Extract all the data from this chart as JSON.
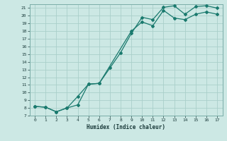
{
  "xlabel": "Humidex (Indice chaleur)",
  "bg_color": "#cce8e4",
  "grid_color": "#aacfca",
  "line_color": "#1a7a6e",
  "xlim": [
    -0.5,
    17.5
  ],
  "ylim": [
    7,
    21.5
  ],
  "x_ticks": [
    0,
    1,
    2,
    3,
    4,
    5,
    6,
    7,
    8,
    9,
    10,
    11,
    12,
    13,
    14,
    15,
    16,
    17
  ],
  "y_ticks": [
    7,
    8,
    9,
    10,
    11,
    12,
    13,
    14,
    15,
    16,
    17,
    18,
    19,
    20,
    21
  ],
  "line1_x": [
    0,
    1,
    2,
    3,
    4,
    5,
    6,
    7,
    8,
    9,
    10,
    11,
    12,
    13,
    14,
    15,
    16,
    17
  ],
  "line1_y": [
    8.2,
    8.1,
    7.5,
    8.0,
    8.4,
    11.1,
    11.2,
    13.2,
    15.2,
    17.7,
    19.8,
    19.5,
    21.1,
    21.3,
    20.2,
    21.2,
    21.3,
    21.0
  ],
  "line2_x": [
    0,
    1,
    2,
    3,
    4,
    5,
    6,
    9,
    10,
    11,
    12,
    13,
    14,
    15,
    16,
    17
  ],
  "line2_y": [
    8.2,
    8.1,
    7.5,
    8.0,
    9.5,
    11.1,
    11.2,
    18.0,
    19.2,
    18.7,
    20.7,
    19.7,
    19.5,
    20.2,
    20.5,
    20.2
  ]
}
